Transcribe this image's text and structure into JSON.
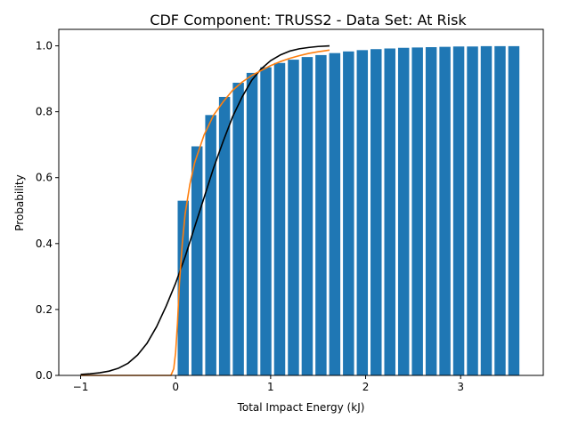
{
  "chart_data": {
    "type": "bar",
    "title": "CDF Component: TRUSS2 - Data Set: At Risk",
    "xlabel": "Total Impact Energy (kJ)",
    "ylabel": "Probability",
    "xlim": [
      -1.23,
      3.87
    ],
    "ylim": [
      0,
      1.05
    ],
    "xticks": [
      -1,
      0,
      1,
      2,
      3
    ],
    "yticks": [
      0.0,
      0.2,
      0.4,
      0.6,
      0.8,
      1.0
    ],
    "grid": false,
    "bar_color": "#1f77b4",
    "bar_width": 0.117,
    "bars": {
      "x": [
        0.08,
        0.225,
        0.37,
        0.515,
        0.66,
        0.805,
        0.95,
        1.095,
        1.24,
        1.385,
        1.53,
        1.675,
        1.82,
        1.965,
        2.11,
        2.255,
        2.4,
        2.545,
        2.69,
        2.835,
        2.98,
        3.125,
        3.27,
        3.415,
        3.56
      ],
      "y": [
        0.53,
        0.695,
        0.79,
        0.845,
        0.888,
        0.918,
        0.935,
        0.948,
        0.958,
        0.966,
        0.972,
        0.978,
        0.983,
        0.987,
        0.99,
        0.992,
        0.994,
        0.995,
        0.996,
        0.997,
        0.998,
        0.998,
        0.999,
        0.999,
        0.999
      ]
    },
    "lines": [
      {
        "color": "#000000",
        "x": [
          -1.0,
          -0.9,
          -0.8,
          -0.7,
          -0.6,
          -0.5,
          -0.4,
          -0.3,
          -0.2,
          -0.1,
          0.0,
          0.1,
          0.2,
          0.3,
          0.4,
          0.5,
          0.6,
          0.7,
          0.8,
          0.9,
          1.0,
          1.1,
          1.2,
          1.3,
          1.4,
          1.5,
          1.62
        ],
        "y": [
          0.003,
          0.005,
          0.008,
          0.013,
          0.022,
          0.037,
          0.062,
          0.098,
          0.148,
          0.21,
          0.28,
          0.36,
          0.45,
          0.54,
          0.63,
          0.71,
          0.785,
          0.845,
          0.895,
          0.93,
          0.955,
          0.972,
          0.984,
          0.991,
          0.995,
          0.998,
          1.0
        ]
      },
      {
        "color": "#ff7f0e",
        "x": [
          -1.0,
          -0.05,
          -0.02,
          0.0,
          0.02,
          0.04,
          0.07,
          0.1,
          0.15,
          0.2,
          0.3,
          0.4,
          0.5,
          0.6,
          0.7,
          0.8,
          0.9,
          1.0,
          1.1,
          1.2,
          1.3,
          1.4,
          1.5,
          1.62
        ],
        "y": [
          0.0,
          0.0,
          0.02,
          0.07,
          0.16,
          0.28,
          0.4,
          0.49,
          0.58,
          0.645,
          0.73,
          0.79,
          0.83,
          0.865,
          0.89,
          0.91,
          0.925,
          0.94,
          0.952,
          0.962,
          0.97,
          0.977,
          0.982,
          0.987
        ]
      }
    ]
  }
}
